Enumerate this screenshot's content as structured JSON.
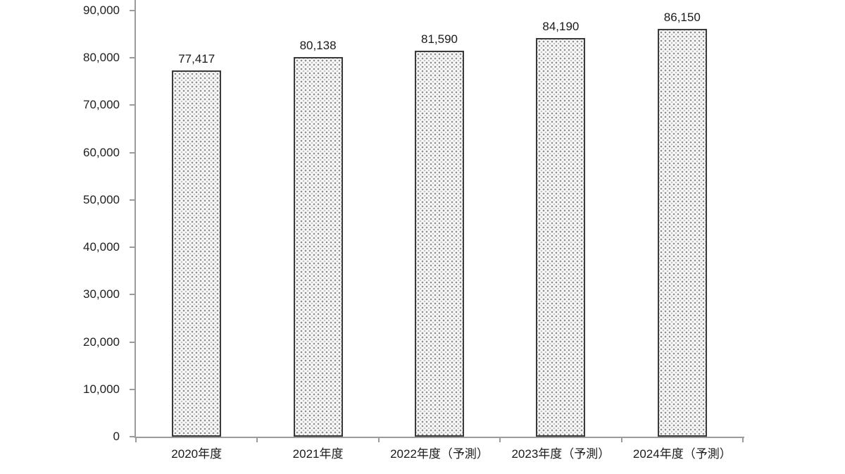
{
  "chart_data": {
    "type": "bar",
    "title": "",
    "xlabel": "",
    "ylabel": "",
    "categories": [
      "2020年度",
      "2021年度",
      "2022年度（予測）",
      "2023年度（予測）",
      "2024年度（予測）"
    ],
    "values": [
      77417,
      80138,
      81590,
      84190,
      86150
    ],
    "value_labels": [
      "77,417",
      "80,138",
      "81,590",
      "84,190",
      "86,150"
    ],
    "ylim": [
      0,
      90000
    ],
    "ytick_interval": 10000,
    "ytick_labels": [
      "0",
      "10,000",
      "20,000",
      "30,000",
      "40,000",
      "50,000",
      "60,000",
      "70,000",
      "80,000",
      "90,000"
    ],
    "grid": false,
    "legend": false,
    "bar_fill_style": "dotted-pattern",
    "bar_border_color": "#3a3a3a",
    "axis_color": "#9b9b9b",
    "text_color": "#1a1a1a",
    "background_color": "#ffffff"
  }
}
